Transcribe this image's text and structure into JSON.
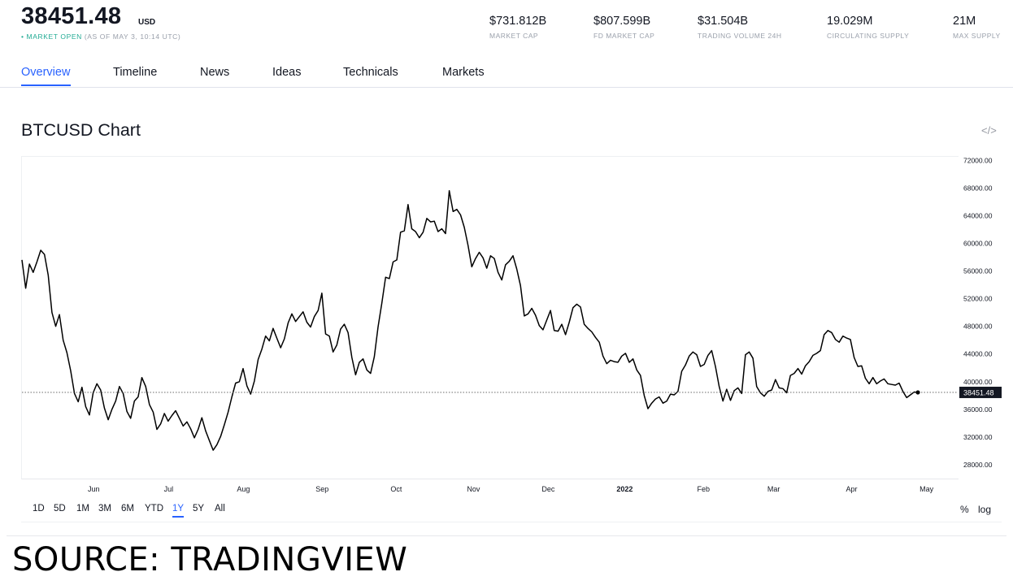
{
  "header": {
    "price": "38451.48",
    "currency": "USD",
    "status_dot": "•",
    "status_label": "MARKET OPEN",
    "status_time": "(AS OF MAY 3, 10:14 UTC)",
    "stats": [
      {
        "value": "$731.812B",
        "label": "MARKET CAP"
      },
      {
        "value": "$807.599B",
        "label": "FD MARKET CAP"
      },
      {
        "value": "$31.504B",
        "label": "TRADING VOLUME 24H"
      },
      {
        "value": "19.029M",
        "label": "CIRCULATING SUPPLY"
      },
      {
        "value": "21M",
        "label": "MAX SUPPLY"
      }
    ]
  },
  "tabs": [
    "Overview",
    "Timeline",
    "News",
    "Ideas",
    "Technicals",
    "Markets"
  ],
  "active_tab": "Overview",
  "chart_title": "BTCUSD Chart",
  "embed_icon": "code-embed-icon",
  "chart_data": {
    "type": "line",
    "y_ticks": [
      "72000.00",
      "68000.00",
      "64000.00",
      "60000.00",
      "56000.00",
      "52000.00",
      "48000.00",
      "44000.00",
      "40000.00",
      "36000.00",
      "32000.00",
      "28000.00"
    ],
    "ylim": [
      26000,
      72500
    ],
    "x_ticks": [
      "Jun",
      "Jul",
      "Aug",
      "Sep",
      "Oct",
      "Nov",
      "Dec",
      "2022",
      "Feb",
      "Mar",
      "Apr",
      "May"
    ],
    "x_tick_positions": [
      0.092,
      0.188,
      0.284,
      0.385,
      0.48,
      0.579,
      0.675,
      0.773,
      0.874,
      0.964,
      1.064,
      1.16
    ],
    "last_price_label": "38451.48",
    "last_price": 38451.48,
    "series": [
      {
        "values": [
          57600,
          53500,
          57000,
          55800,
          57300,
          59000,
          58400,
          55400,
          50000,
          48000,
          49700,
          46000,
          44200,
          41600,
          38300,
          37100,
          39200,
          36400,
          35200,
          38400,
          39700,
          38800,
          36200,
          34500,
          36000,
          37200,
          39300,
          38300,
          35700,
          34700,
          37200,
          37800,
          40600,
          39300,
          36700,
          35600,
          33100,
          33900,
          35400,
          34300,
          35100,
          35800,
          34700,
          33600,
          34200,
          33200,
          31900,
          33100,
          34800,
          32900,
          31500,
          30100,
          30900,
          32100,
          33800,
          35600,
          37800,
          39800,
          40000,
          41900,
          39400,
          38200,
          40100,
          43200,
          44700,
          46600,
          45900,
          47700,
          46300,
          44900,
          46200,
          48500,
          49800,
          48700,
          49400,
          50100,
          48600,
          47900,
          49400,
          50300,
          52800,
          46900,
          46600,
          44300,
          45300,
          47600,
          48300,
          47100,
          43500,
          41000,
          42800,
          43300,
          41700,
          41200,
          43600,
          47900,
          51300,
          55100,
          54900,
          57300,
          57600,
          61600,
          61800,
          65600,
          62100,
          61700,
          60800,
          61600,
          63600,
          63100,
          63200,
          61700,
          62100,
          61400,
          67600,
          64600,
          64900,
          64100,
          62300,
          59700,
          56600,
          57800,
          58700,
          57900,
          56400,
          58200,
          57800,
          55800,
          54700,
          56900,
          57400,
          58200,
          56300,
          53900,
          49500,
          49800,
          50600,
          49600,
          48100,
          47500,
          48900,
          50300,
          47400,
          47300,
          48300,
          46800,
          48600,
          50700,
          51200,
          50800,
          48300,
          47700,
          47200,
          46400,
          45700,
          43700,
          42600,
          43100,
          42900,
          42800,
          43700,
          44100,
          42800,
          43300,
          41700,
          40900,
          38000,
          36100,
          36900,
          37500,
          37800,
          36900,
          37200,
          38200,
          38100,
          38600,
          41500,
          42400,
          43700,
          44300,
          43900,
          42200,
          42500,
          43800,
          44500,
          42200,
          39300,
          37200,
          38900,
          37300,
          38700,
          39100,
          38300,
          43900,
          44300,
          43400,
          39300,
          38400,
          37900,
          38600,
          38800,
          40300,
          39100,
          39000,
          38400,
          40900,
          41200,
          41900,
          41100,
          42300,
          42900,
          43800,
          44100,
          44500,
          46800,
          47400,
          47100,
          46100,
          45700,
          46600,
          46300,
          46100,
          43500,
          42200,
          42300,
          40500,
          39700,
          40600,
          39700,
          40100,
          40400,
          39700,
          39600,
          39500,
          39800,
          38600,
          37700,
          38100,
          38500,
          38451
        ]
      }
    ]
  },
  "ranges": [
    "1D",
    "5D",
    "1M",
    "3M",
    "6M",
    "YTD",
    "1Y",
    "5Y",
    "All"
  ],
  "active_range": "1Y",
  "options": [
    "%",
    "log"
  ],
  "source_caption": "SOURCE: TRADINGVIEW",
  "colors": {
    "accent": "#2962ff",
    "market_open": "#22ab94",
    "line": "#000000",
    "price_tag_bg": "#131722"
  }
}
